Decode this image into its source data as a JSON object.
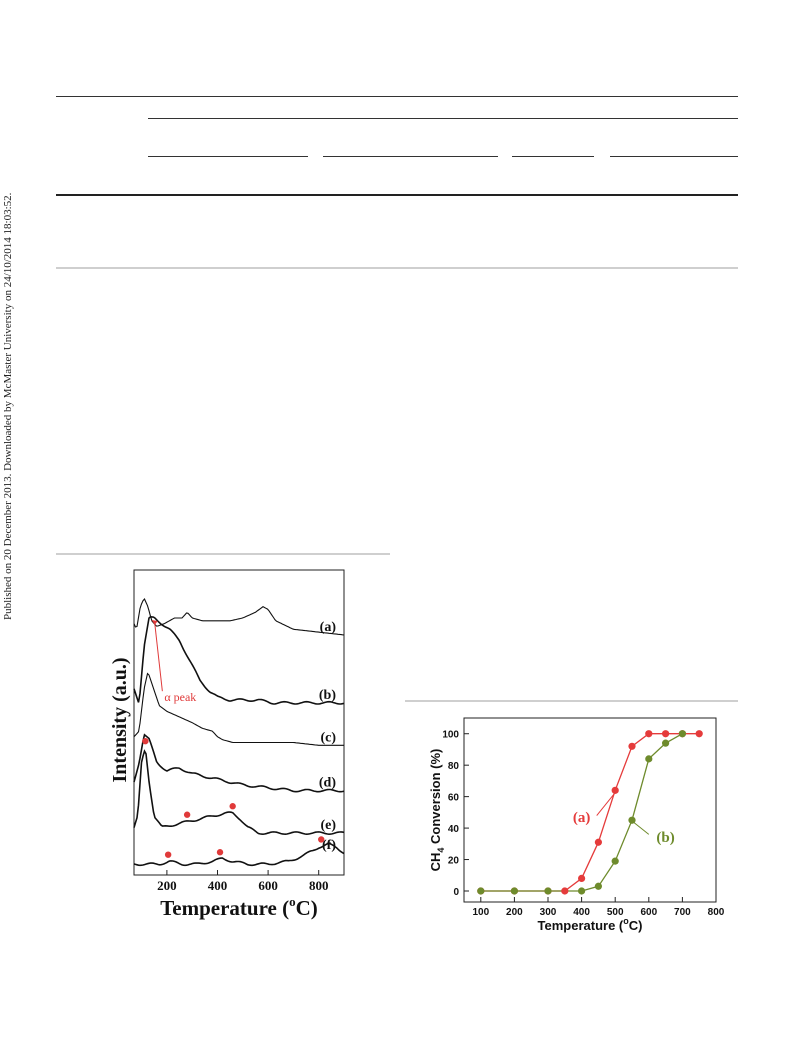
{
  "sidebar": {
    "text": "Published on 20 December 2013. Downloaded by McMaster University on 24/10/2014 18:03:52."
  },
  "figure_left": {
    "chart_data": {
      "type": "line",
      "title": "",
      "xlabel": "Temperature (",
      "xlabel_sup": "o",
      "xlabel_end": "C)",
      "ylabel": "Intensity (a.u.)",
      "xlim": [
        70,
        900
      ],
      "xticks": [
        200,
        400,
        600,
        800
      ],
      "xtick_labels": [
        "200",
        "400",
        "600",
        "800"
      ],
      "yticks": "none",
      "grid": false,
      "series": [
        {
          "name": "(a)",
          "baseline": 0.82,
          "x": [
            70,
            80,
            95,
            110,
            125,
            140,
            160,
            190,
            230,
            260,
            280,
            300,
            340,
            400,
            450,
            500,
            550,
            580,
            600,
            630,
            700,
            800,
            900
          ],
          "y": [
            0.04,
            0.02,
            0.1,
            0.13,
            0.1,
            0.05,
            0.03,
            0.04,
            0.06,
            0.06,
            0.08,
            0.06,
            0.05,
            0.05,
            0.05,
            0.06,
            0.08,
            0.1,
            0.09,
            0.05,
            0.02,
            0.01,
            0.0
          ]
        },
        {
          "name": "(b)",
          "baseline": 0.58,
          "x": [
            70,
            90,
            110,
            130,
            150,
            180,
            210,
            250,
            290,
            330,
            370,
            400,
            450,
            500,
            560,
            620,
            700,
            800,
            900
          ],
          "y": [
            0.05,
            0.0,
            0.2,
            0.3,
            0.3,
            0.28,
            0.26,
            0.22,
            0.15,
            0.08,
            0.04,
            0.02,
            0.01,
            0.01,
            0.01,
            0.0,
            0.0,
            0.0,
            0.0
          ]
        },
        {
          "name": "(c)",
          "baseline": 0.43,
          "x": [
            70,
            90,
            110,
            125,
            140,
            170,
            200,
            250,
            300,
            340,
            380,
            400,
            420,
            460,
            520,
            600,
            700,
            800,
            900
          ],
          "y": [
            0.03,
            0.05,
            0.2,
            0.26,
            0.22,
            0.14,
            0.12,
            0.1,
            0.08,
            0.06,
            0.05,
            0.03,
            0.02,
            0.01,
            0.01,
            0.01,
            0.01,
            0.0,
            0.0
          ]
        },
        {
          "name": "(d)",
          "baseline": 0.27,
          "x": [
            70,
            90,
            110,
            130,
            160,
            200,
            250,
            300,
            350,
            400,
            450,
            500,
            600,
            700,
            800,
            900
          ],
          "y": [
            0.03,
            0.1,
            0.2,
            0.18,
            0.1,
            0.07,
            0.08,
            0.06,
            0.05,
            0.04,
            0.03,
            0.02,
            0.01,
            0.0,
            0.0,
            0.0
          ]
        },
        {
          "name": "(e)",
          "baseline": 0.12,
          "x": [
            70,
            85,
            100,
            115,
            130,
            150,
            180,
            230,
            280,
            330,
            380,
            430,
            460,
            490,
            520,
            560,
            600,
            700,
            800,
            900
          ],
          "y": [
            0.02,
            0.06,
            0.25,
            0.3,
            0.18,
            0.06,
            0.02,
            0.03,
            0.04,
            0.05,
            0.06,
            0.07,
            0.07,
            0.05,
            0.02,
            0.0,
            0.0,
            0.0,
            0.0,
            0.0
          ]
        },
        {
          "name": "(f)",
          "baseline": 0.0,
          "x": [
            70,
            120,
            170,
            210,
            260,
            320,
            380,
            420,
            460,
            520,
            600,
            680,
            740,
            800,
            840,
            870,
            900
          ],
          "y": [
            0.01,
            0.01,
            0.01,
            0.02,
            0.01,
            0.01,
            0.02,
            0.03,
            0.02,
            0.01,
            0.01,
            0.02,
            0.04,
            0.07,
            0.08,
            0.07,
            0.05
          ]
        }
      ],
      "markers": [
        {
          "series": "(e)",
          "x": [
            115,
            280,
            460
          ]
        },
        {
          "series": "(f)",
          "x": [
            205,
            410,
            810
          ]
        }
      ],
      "annotations": [
        {
          "text": "α peak",
          "x": 190,
          "y": 0.6
        }
      ],
      "colors": {
        "line": "#111111",
        "marker": "#e03a3a",
        "annotation": "#e03a3a"
      }
    }
  },
  "figure_right": {
    "chart_data": {
      "type": "line",
      "title": "",
      "xlabel": "Temperature (",
      "xlabel_sup": "o",
      "xlabel_end": "C)",
      "ylabel": "CH",
      "ylabel_sub": "4",
      "ylabel_end": " Conversion (%)",
      "xlim": [
        50,
        800
      ],
      "ylim": [
        -7,
        110
      ],
      "xticks": [
        100,
        200,
        300,
        400,
        500,
        600,
        700,
        800
      ],
      "yticks": [
        0,
        20,
        40,
        60,
        80,
        100
      ],
      "grid": false,
      "series": [
        {
          "name": "(a)",
          "color": "#e53b3b",
          "x": [
            100,
            200,
            300,
            350,
            400,
            450,
            500,
            550,
            600,
            650,
            700,
            750
          ],
          "y": [
            0,
            0,
            0,
            0,
            8,
            31,
            64,
            92,
            100,
            100,
            100,
            100
          ]
        },
        {
          "name": "(b)",
          "color": "#6e8b2c",
          "x": [
            100,
            200,
            300,
            400,
            450,
            500,
            550,
            600,
            650,
            700
          ],
          "y": [
            0,
            0,
            0,
            0,
            3,
            19,
            45,
            84,
            94,
            100
          ]
        }
      ]
    }
  }
}
